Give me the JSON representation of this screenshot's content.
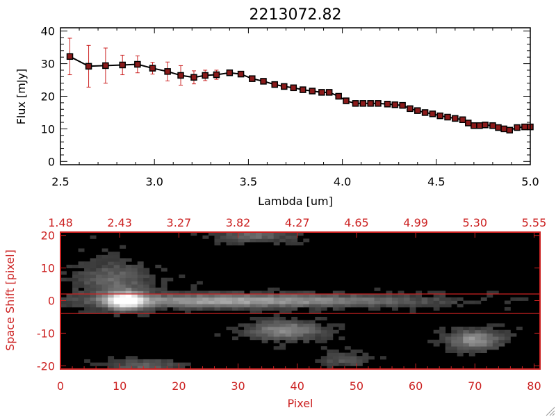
{
  "chart_data": [
    {
      "type": "line",
      "title": "2213072.82",
      "xlabel": "Lambda [um]",
      "ylabel": "Flux [mJy]",
      "xlim": [
        2.5,
        5.0
      ],
      "ylim": [
        -1,
        41
      ],
      "x_ticks": [
        "2.5",
        "3.0",
        "3.5",
        "4.0",
        "4.5",
        "5.0"
      ],
      "y_ticks": [
        "0",
        "10",
        "20",
        "30",
        "40"
      ],
      "line_color": "#000000",
      "marker_color": "#8b1a1a",
      "error_color": "#cc2222",
      "grid": false,
      "x": [
        2.55,
        2.65,
        2.74,
        2.83,
        2.91,
        2.99,
        3.07,
        3.14,
        3.21,
        3.27,
        3.33,
        3.4,
        3.46,
        3.52,
        3.58,
        3.64,
        3.69,
        3.74,
        3.79,
        3.84,
        3.89,
        3.93,
        3.98,
        4.02,
        4.07,
        4.11,
        4.15,
        4.19,
        4.24,
        4.28,
        4.32,
        4.36,
        4.4,
        4.44,
        4.48,
        4.52,
        4.56,
        4.6,
        4.64,
        4.67,
        4.7,
        4.73,
        4.76,
        4.8,
        4.83,
        4.86,
        4.89,
        4.93,
        4.97,
        5.0
      ],
      "y": [
        32.2,
        29.2,
        29.4,
        29.6,
        29.8,
        28.6,
        27.6,
        26.4,
        25.8,
        26.4,
        26.6,
        27.2,
        26.8,
        25.4,
        24.6,
        23.6,
        23.0,
        22.6,
        22.0,
        21.6,
        21.2,
        21.2,
        20.0,
        18.6,
        17.8,
        17.8,
        17.8,
        17.8,
        17.6,
        17.4,
        17.2,
        16.2,
        15.6,
        15.0,
        14.6,
        14.0,
        13.6,
        13.2,
        12.8,
        11.8,
        11.0,
        11.0,
        11.2,
        11.0,
        10.4,
        10.0,
        9.6,
        10.4,
        10.6,
        10.6
      ],
      "err": [
        5.6,
        6.4,
        5.4,
        3.0,
        2.6,
        1.8,
        2.9,
        3.0,
        2.0,
        1.6,
        1.4,
        0,
        0,
        0,
        0,
        0,
        0,
        0,
        0,
        0,
        0,
        0,
        0,
        0,
        0,
        0,
        0,
        0,
        0,
        0,
        0,
        0,
        0,
        0,
        0,
        0,
        0,
        0,
        0,
        0,
        0,
        0,
        0,
        0,
        0,
        0,
        0,
        0,
        0,
        0
      ]
    },
    {
      "type": "heatmap",
      "xlabel": "Pixel",
      "ylabel": "Space Shift [pixel]",
      "xlim": [
        0,
        81
      ],
      "ylim": [
        -21,
        21
      ],
      "x_ticks": [
        "0",
        "10",
        "20",
        "30",
        "40",
        "50",
        "60",
        "70",
        "80"
      ],
      "y_ticks": [
        "-20",
        "-10",
        "0",
        "10",
        "20"
      ],
      "top_ticks": [
        "1.48",
        "2.43",
        "3.27",
        "3.82",
        "4.27",
        "4.65",
        "4.99",
        "5.30",
        "5.55"
      ],
      "extraction_aperture": [
        -3,
        3
      ],
      "colormap": "grayscale",
      "axis_color": "#cc2222",
      "aperture_color": "#cc2222",
      "sources": [
        {
          "x": 11,
          "y": 0,
          "amplitude": 1.0,
          "sigma_x": 2.2,
          "sigma_y": 1.8,
          "label": "primary spectrum peak"
        },
        {
          "x": 26,
          "y": 0,
          "amplitude": 0.55,
          "sigma_x": 14,
          "sigma_y": 1.4,
          "label": "primary spectrum trace"
        },
        {
          "x": 50,
          "y": 0,
          "amplitude": 0.25,
          "sigma_x": 12,
          "sigma_y": 1.2,
          "label": "primary spectrum tail"
        },
        {
          "x": 9,
          "y": 6,
          "amplitude": 0.3,
          "sigma_x": 4,
          "sigma_y": 4,
          "label": "halo"
        },
        {
          "x": 38,
          "y": -9,
          "amplitude": 0.45,
          "sigma_x": 4,
          "sigma_y": 2,
          "label": "secondary source"
        },
        {
          "x": 70,
          "y": -12,
          "amplitude": 0.5,
          "sigma_x": 3,
          "sigma_y": 2,
          "label": "secondary source"
        },
        {
          "x": 33,
          "y": 20,
          "amplitude": 0.3,
          "sigma_x": 4,
          "sigma_y": 1.5,
          "label": "edge source"
        },
        {
          "x": 14,
          "y": -20,
          "amplitude": 0.25,
          "sigma_x": 4,
          "sigma_y": 1.5,
          "label": "edge source"
        },
        {
          "x": 48,
          "y": -18,
          "amplitude": 0.2,
          "sigma_x": 3,
          "sigma_y": 1.5,
          "label": "edge source"
        }
      ]
    }
  ]
}
